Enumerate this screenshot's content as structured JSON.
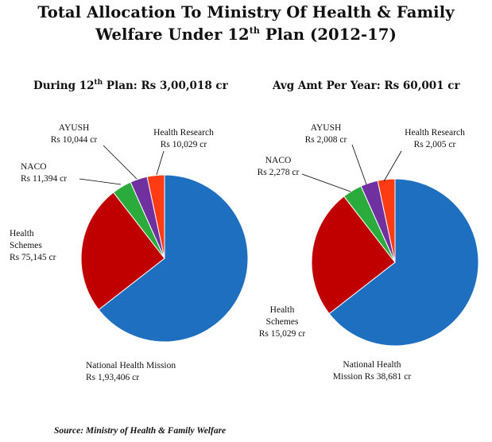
{
  "title": {
    "line1": "Total Allocation To Ministry Of Health & Family",
    "line2_prefix": "Welfare Under 12",
    "line2_sup": "th",
    "line2_suffix": " Plan (2012-17)"
  },
  "source": "Source: Ministry of Health & Family Welfare",
  "colors": {
    "National Health Mission": "#1f6fc1",
    "Health Schemes": "#c00000",
    "NACO": "#2bab3b",
    "AYUSH": "#7030a0",
    "Health Research": "#ff3b14"
  },
  "chart_data": [
    {
      "type": "pie",
      "title_prefix": "During 12",
      "title_sup": "th",
      "title_suffix": " Plan: Rs 3,00,018 cr",
      "unit": "Rs cr",
      "slices": [
        {
          "name": "National Health Mission",
          "value": 193406,
          "label_lines": [
            "National Health Mission",
            "Rs 1,93,406 cr"
          ]
        },
        {
          "name": "Health Schemes",
          "value": 75145,
          "label_lines": [
            "Health",
            "Schemes",
            "Rs 75,145 cr"
          ]
        },
        {
          "name": "NACO",
          "value": 11394,
          "label_lines": [
            "NACO",
            "Rs 11,394 cr"
          ]
        },
        {
          "name": "AYUSH",
          "value": 10044,
          "label_lines": [
            "AYUSH",
            "Rs 10,044 cr"
          ]
        },
        {
          "name": "Health Research",
          "value": 10029,
          "label_lines": [
            "Health Research",
            "Rs 10,029 cr"
          ]
        }
      ]
    },
    {
      "type": "pie",
      "title_prefix": "Avg Amt Per Year: Rs 60,001 cr",
      "title_sup": "",
      "title_suffix": "",
      "unit": "Rs cr",
      "slices": [
        {
          "name": "National Health Mission",
          "value": 38681,
          "label_lines": [
            "National Health",
            "Mission Rs 38,681 cr"
          ]
        },
        {
          "name": "Health Schemes",
          "value": 15029,
          "label_lines": [
            "Health",
            "Schemes",
            "Rs 15,029 cr"
          ]
        },
        {
          "name": "NACO",
          "value": 2278,
          "label_lines": [
            "NACO",
            "Rs 2,278 cr"
          ]
        },
        {
          "name": "AYUSH",
          "value": 2008,
          "label_lines": [
            "AYUSH",
            "Rs 2,008 cr"
          ]
        },
        {
          "name": "Health Research",
          "value": 2005,
          "label_lines": [
            "Health Research",
            "Rs 2,005 cr"
          ]
        }
      ]
    }
  ]
}
